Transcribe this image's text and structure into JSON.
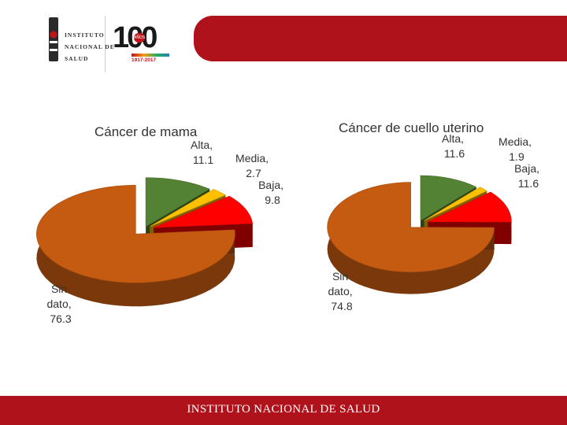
{
  "branding": {
    "logo_lines": [
      "INSTITUTO",
      "NACIONAL DE",
      "SALUD"
    ],
    "anniversary_number": "100",
    "anniversary_badge": "AÑOS",
    "anniversary_years": "1917-2017",
    "footer_text": "INSTITUTO NACIONAL  DE  SALUD",
    "brand_red": "#b0121b"
  },
  "chart_data": [
    {
      "type": "pie",
      "style": "3d-exploded",
      "title": "Cáncer de mama",
      "slices": [
        {
          "name": "Alta",
          "value": 11.1,
          "label": [
            "Alta,",
            "11.1"
          ],
          "color": "#548235"
        },
        {
          "name": "Media",
          "value": 2.7,
          "label": [
            "Media,",
            "2.7"
          ],
          "color": "#ffc000"
        },
        {
          "name": "Baja",
          "value": 9.8,
          "label": [
            "Baja,",
            "9.8"
          ],
          "color": "#ff0000"
        },
        {
          "name": "Sin dato",
          "value": 76.3,
          "label": [
            "Sin",
            "dato,",
            "76.3"
          ],
          "color": "#c55a11"
        }
      ]
    },
    {
      "type": "pie",
      "style": "3d-exploded",
      "title": "Cáncer de cuello uterino",
      "slices": [
        {
          "name": "Alta",
          "value": 11.6,
          "label": [
            "Alta,",
            "11.6"
          ],
          "color": "#548235"
        },
        {
          "name": "Media",
          "value": 1.9,
          "label": [
            "Media,",
            "1.9"
          ],
          "color": "#ffc000"
        },
        {
          "name": "Baja",
          "value": 11.6,
          "label": [
            "Baja,",
            "11.6"
          ],
          "color": "#ff0000"
        },
        {
          "name": "Sin dato",
          "value": 74.8,
          "label": [
            "Sin",
            "dato,",
            "74.8"
          ],
          "color": "#c55a11"
        }
      ]
    }
  ]
}
